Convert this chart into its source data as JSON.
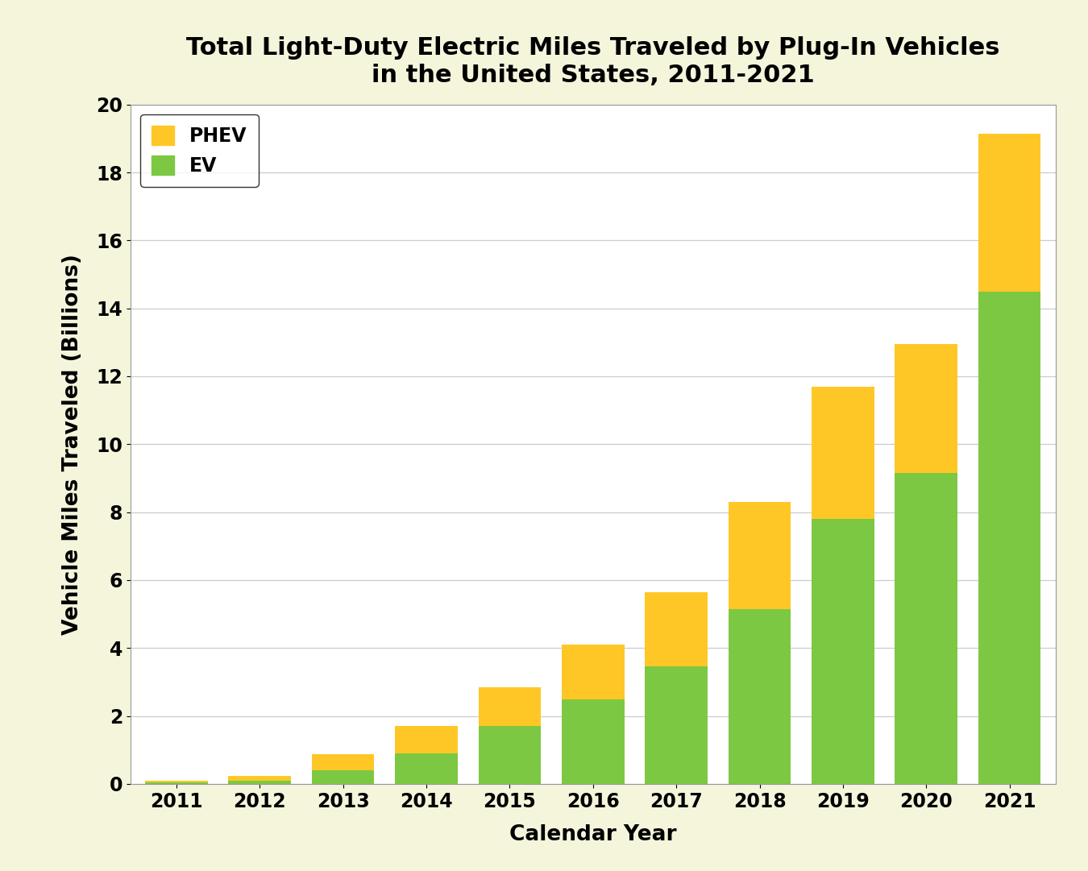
{
  "years": [
    2011,
    2012,
    2013,
    2014,
    2015,
    2016,
    2017,
    2018,
    2019,
    2020,
    2021
  ],
  "ev_values": [
    0.04,
    0.1,
    0.4,
    0.9,
    1.7,
    2.5,
    3.45,
    5.15,
    7.8,
    9.15,
    14.5
  ],
  "phev_values": [
    0.06,
    0.13,
    0.48,
    0.8,
    1.15,
    1.6,
    2.2,
    3.15,
    3.9,
    3.8,
    4.65
  ],
  "ev_color": "#7DC843",
  "phev_color": "#FFC726",
  "title": "Total Light-Duty Electric Miles Traveled by Plug-In Vehicles\nin the United States, 2011-2021",
  "xlabel": "Calendar Year",
  "ylabel": "Vehicle Miles Traveled (Billions)",
  "ylim": [
    0,
    20
  ],
  "yticks": [
    0,
    2,
    4,
    6,
    8,
    10,
    12,
    14,
    16,
    18,
    20
  ],
  "background_color": "#F5F5DC",
  "plot_bg_color": "#FFFFFF",
  "title_fontsize": 22,
  "axis_label_fontsize": 19,
  "tick_fontsize": 17,
  "legend_fontsize": 17,
  "bar_width": 0.75,
  "grid_color": "#CCCCCC",
  "spine_color": "#999999"
}
